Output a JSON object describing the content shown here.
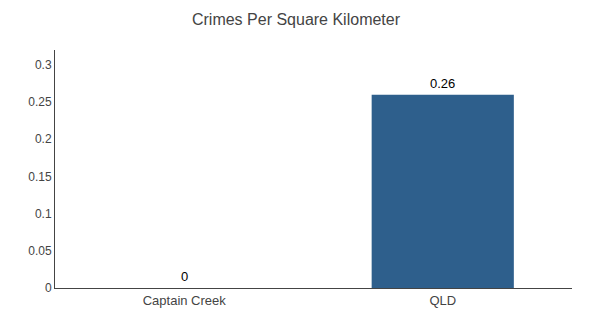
{
  "chart_data": {
    "type": "bar",
    "title": "Crimes Per Square Kilometer",
    "categories": [
      "Captain Creek",
      "QLD"
    ],
    "values": [
      0,
      0.26
    ],
    "color": "#2e5f8c",
    "ylim": [
      0,
      0.32
    ],
    "yticks": [
      0,
      0.05,
      0.1,
      0.15,
      0.2,
      0.25,
      0.3
    ],
    "grid": false,
    "data_labels": true
  }
}
